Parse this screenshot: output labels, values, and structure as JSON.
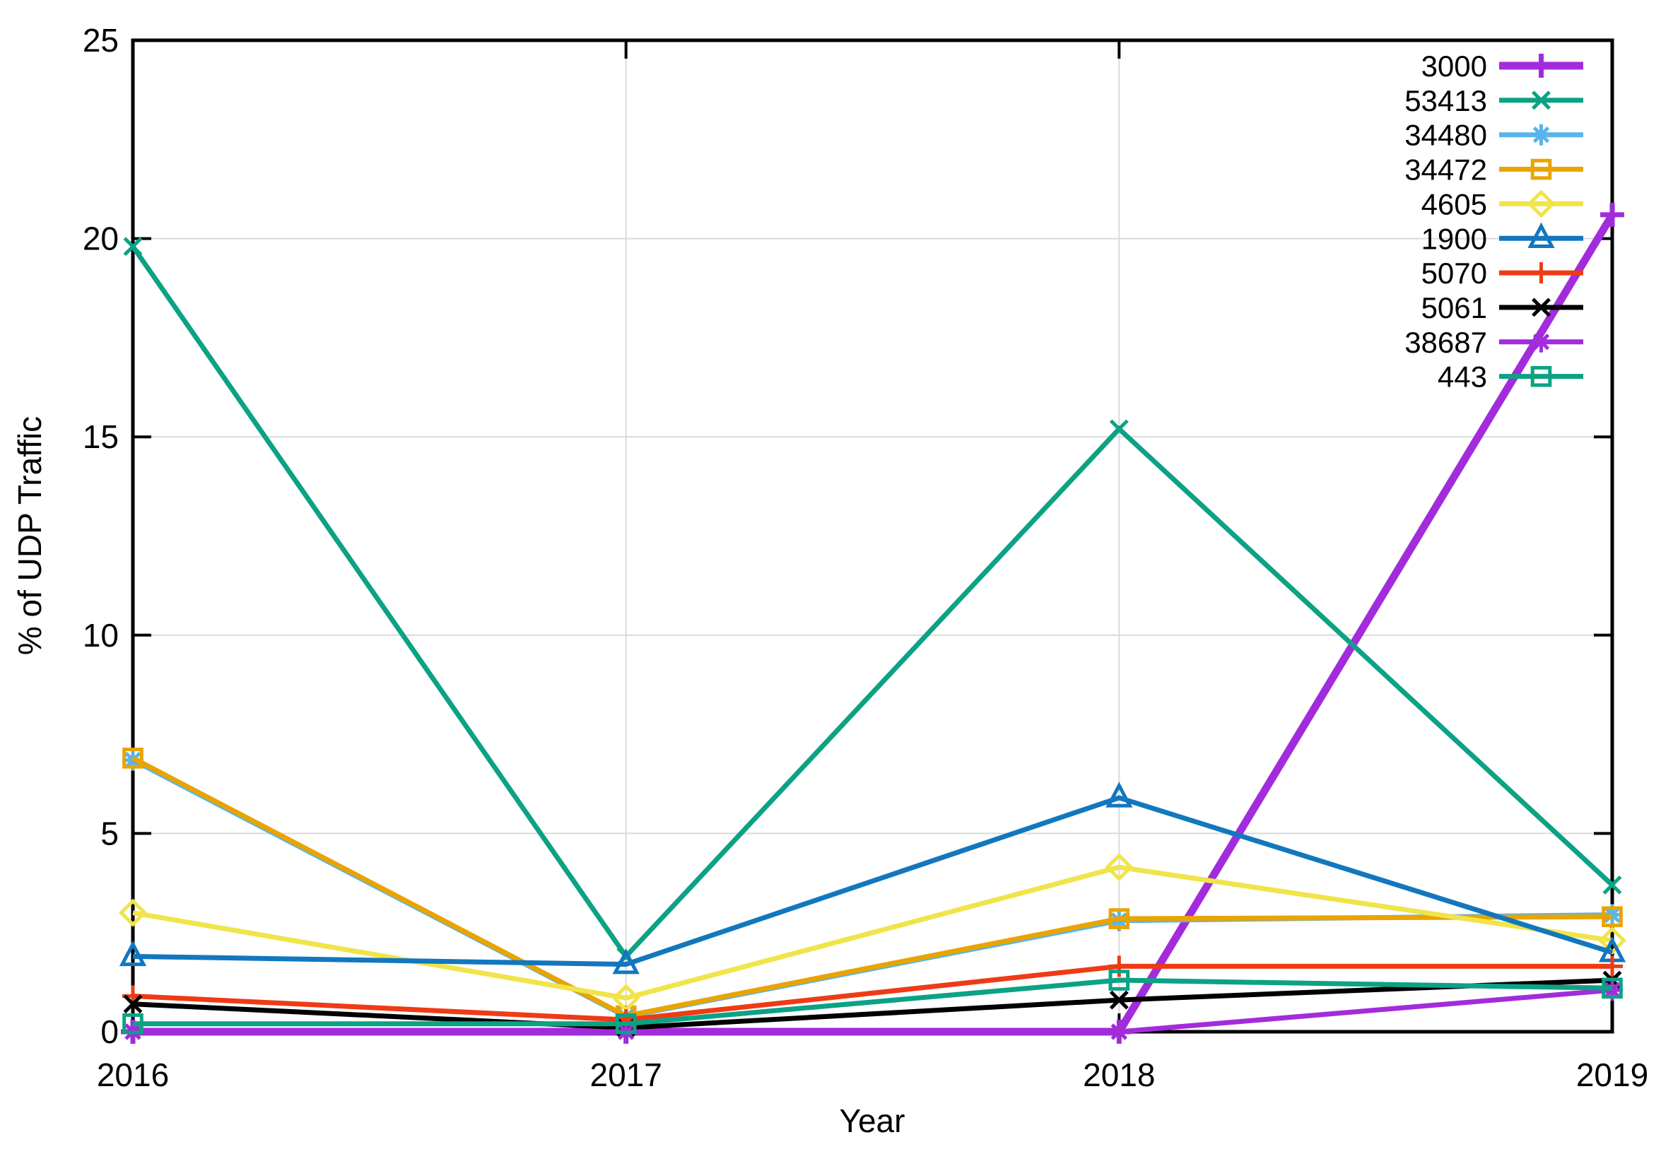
{
  "chart_data": {
    "type": "line",
    "title": "",
    "xlabel": "Year",
    "ylabel": "% of UDP Traffic",
    "x": [
      2016,
      2017,
      2018,
      2019
    ],
    "xtick_labels": [
      "2016",
      "2017",
      "2018",
      "2019"
    ],
    "ytick_values": [
      0,
      5,
      10,
      15,
      20,
      25
    ],
    "ytick_labels": [
      "0",
      "5",
      "10",
      "15",
      "20",
      "25"
    ],
    "xlim": [
      2016,
      2019
    ],
    "ylim": [
      0,
      25
    ],
    "grid": true,
    "legend_position": "top-right-inside",
    "series": [
      {
        "name": "3000",
        "color": "#A22CDB",
        "marker": "plus",
        "emphasis": true,
        "values": [
          0,
          0,
          0,
          20.6
        ]
      },
      {
        "name": "53413",
        "color": "#0CA284",
        "marker": "cross",
        "emphasis": false,
        "values": [
          19.8,
          1.9,
          15.2,
          3.7
        ]
      },
      {
        "name": "34480",
        "color": "#59B5E9",
        "marker": "asterisk",
        "emphasis": false,
        "values": [
          6.85,
          0.38,
          2.8,
          2.95
        ]
      },
      {
        "name": "34472",
        "color": "#E9A400",
        "marker": "square",
        "emphasis": false,
        "values": [
          6.9,
          0.4,
          2.85,
          2.9
        ]
      },
      {
        "name": "4605",
        "color": "#F0E44A",
        "marker": "diamond",
        "emphasis": false,
        "values": [
          3.0,
          0.85,
          4.15,
          2.3
        ]
      },
      {
        "name": "1900",
        "color": "#1277BE",
        "marker": "triangle",
        "emphasis": false,
        "values": [
          1.9,
          1.7,
          5.9,
          2.0
        ]
      },
      {
        "name": "5070",
        "color": "#EE3B16",
        "marker": "plus",
        "emphasis": false,
        "values": [
          0.9,
          0.3,
          1.65,
          1.65
        ]
      },
      {
        "name": "5061",
        "color": "#000000",
        "marker": "cross",
        "emphasis": false,
        "values": [
          0.7,
          0.1,
          0.8,
          1.3
        ]
      },
      {
        "name": "38687",
        "color": "#A22CDB",
        "marker": "asterisk",
        "emphasis": false,
        "values": [
          0,
          0,
          0,
          1.05
        ]
      },
      {
        "name": "443",
        "color": "#0CA284",
        "marker": "square",
        "emphasis": false,
        "values": [
          0.2,
          0.2,
          1.3,
          1.1
        ]
      }
    ],
    "colors": {
      "background": "#ffffff",
      "border": "#000000",
      "grid": "#DADADA",
      "text": "#000000"
    }
  }
}
